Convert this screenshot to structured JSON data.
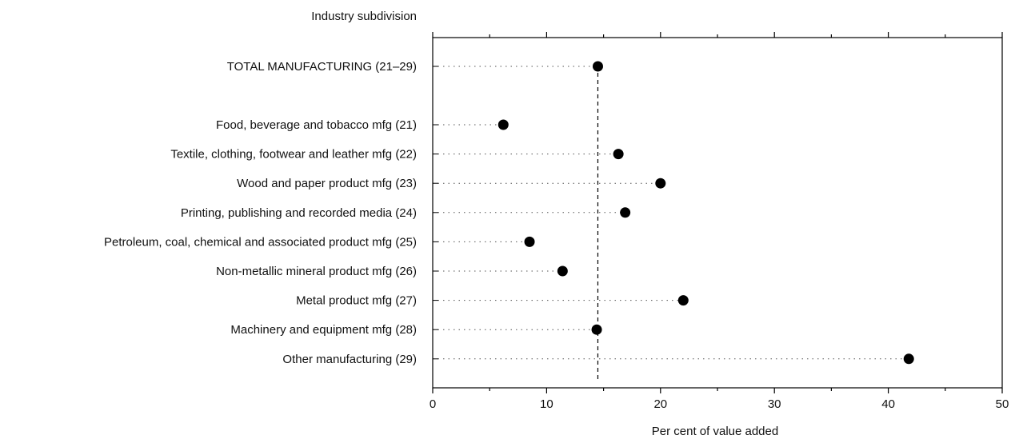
{
  "chart_data": {
    "type": "scatter",
    "header_label": "Industry subdivision",
    "xlabel": "Per cent of value added",
    "xlim": [
      0,
      50
    ],
    "xticks": [
      0,
      10,
      20,
      30,
      40,
      50
    ],
    "reference_value": 14.5,
    "grid": false,
    "categories": [
      "TOTAL MANUFACTURING (21–29)",
      "Food, beverage and tobacco mfg (21)",
      "Textile, clothing, footwear and leather mfg (22)",
      "Wood and paper product mfg (23)",
      "Printing, publishing and recorded media (24)",
      "Petroleum, coal, chemical and associated product mfg (25)",
      "Non-metallic mineral product mfg (26)",
      "Metal product mfg (27)",
      "Machinery and equipment mfg (28)",
      "Other manufacturing (29)"
    ],
    "values": [
      14.5,
      6.2,
      16.3,
      20.0,
      16.9,
      8.5,
      11.4,
      22.0,
      14.4,
      41.8
    ]
  }
}
